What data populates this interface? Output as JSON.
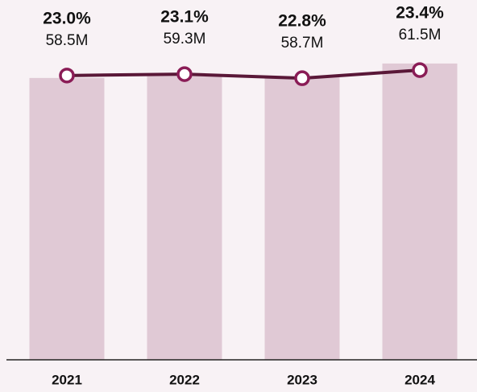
{
  "chart_data": {
    "type": "bar",
    "categories": [
      "2021",
      "2022",
      "2023",
      "2024"
    ],
    "series": [
      {
        "type": "bar",
        "color": "#e0c9d5",
        "values": [
          58.5,
          59.3,
          58.7,
          61.5
        ],
        "value_labels": [
          "58.5M",
          "59.3M",
          "58.7M",
          "61.5M"
        ]
      },
      {
        "type": "line",
        "axis": "y2",
        "color": "#5a1838",
        "marker_color": "#8a1c56",
        "values": [
          23.0,
          23.1,
          22.8,
          23.4
        ],
        "value_labels": [
          "23.0%",
          "23.1%",
          "22.8%",
          "23.4%"
        ]
      }
    ],
    "ylim": [
      0,
      68
    ],
    "y2lim": [
      2,
      26.2
    ]
  }
}
